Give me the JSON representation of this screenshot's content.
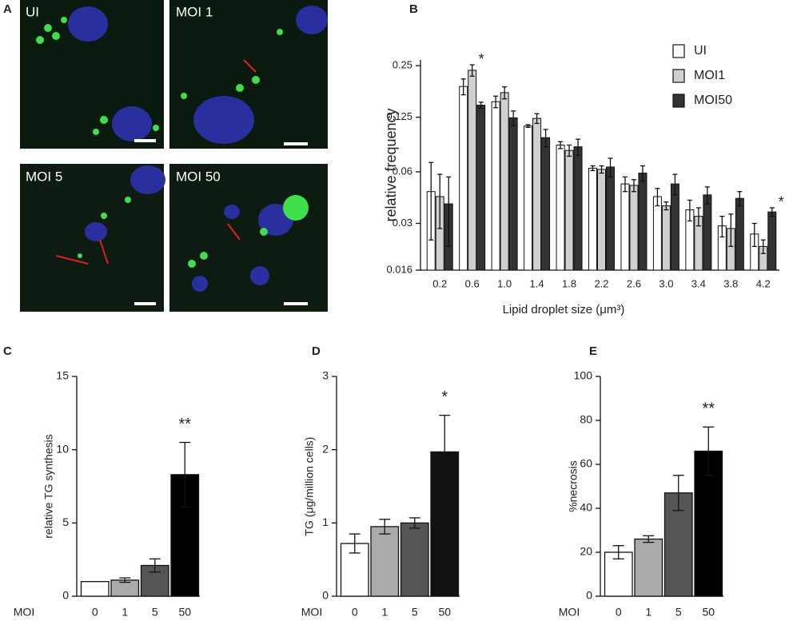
{
  "panel_a": {
    "panel": "A",
    "images": [
      "UI",
      "MOI 1",
      "MOI 5",
      "MOI 50"
    ]
  },
  "chart_data": [
    {
      "type": "bar",
      "panel": "B",
      "ylabel": "relative frequency",
      "xlabel": "Lipid droplet size (μm³)",
      "log_scale": true,
      "legend": "upper right",
      "categories": [
        "0.2",
        "0.6",
        "1.0",
        "1.4",
        "1.8",
        "2.2",
        "2.6",
        "3.0",
        "3.4",
        "3.8",
        "4.2"
      ],
      "series": [
        {
          "name": "UI",
          "color": "#ffffff",
          "values": [
            0.046,
            0.189,
            0.154,
            0.111,
            0.086,
            0.063,
            0.051,
            0.043,
            0.036,
            0.029,
            0.026
          ],
          "errors": [
            0.022,
            0.02,
            0.012,
            0.002,
            0.004,
            0.002,
            0.005,
            0.005,
            0.005,
            0.004,
            0.004
          ]
        },
        {
          "name": "MOI1",
          "color": "#d0d0d0",
          "values": [
            0.043,
            0.235,
            0.174,
            0.123,
            0.08,
            0.062,
            0.05,
            0.038,
            0.033,
            0.028,
            0.022
          ],
          "errors": [
            0.015,
            0.018,
            0.014,
            0.008,
            0.006,
            0.003,
            0.004,
            0.002,
            0.004,
            0.006,
            0.002
          ]
        },
        {
          "name": "MOI50",
          "color": "#333333",
          "values": [
            0.039,
            0.147,
            0.124,
            0.095,
            0.084,
            0.064,
            0.059,
            0.051,
            0.044,
            0.042,
            0.035
          ],
          "errors": [
            0.017,
            0.006,
            0.012,
            0.011,
            0.009,
            0.008,
            0.006,
            0.007,
            0.005,
            0.004,
            0.002
          ]
        }
      ],
      "ylim": [
        0.016,
        0.27
      ],
      "yticks": [
        0.016,
        0.03,
        0.06,
        0.125,
        0.25
      ],
      "annotations": [
        {
          "text": "*",
          "category": 1,
          "series": 1
        },
        {
          "text": "*",
          "category": 10,
          "series": 2
        }
      ]
    },
    {
      "type": "bar",
      "panel": "C",
      "ylabel": "relative TG synthesis",
      "xlabel": "MOI",
      "categories": [
        "0",
        "1",
        "5",
        "50"
      ],
      "values": [
        1,
        1.1,
        2.1,
        8.3
      ],
      "errors": [
        0,
        0.15,
        0.45,
        2.2
      ],
      "colors": [
        "#ffffff",
        "#aaaaaa",
        "#555555",
        "#000000"
      ],
      "ylim": [
        0,
        15
      ],
      "yticks": [
        0,
        5,
        10,
        15
      ],
      "annotations": [
        {
          "text": "**",
          "category": 3
        }
      ]
    },
    {
      "type": "bar",
      "panel": "D",
      "ylabel": "TG (μg/million cells)",
      "xlabel": "MOI",
      "categories": [
        "0",
        "1",
        "5",
        "50"
      ],
      "values": [
        0.72,
        0.95,
        1.0,
        1.97
      ],
      "errors": [
        0.13,
        0.1,
        0.07,
        0.5
      ],
      "colors": [
        "#ffffff",
        "#aaaaaa",
        "#555555",
        "#111111"
      ],
      "ylim": [
        0,
        3
      ],
      "yticks": [
        0,
        1,
        2,
        3
      ],
      "annotations": [
        {
          "text": "*",
          "category": 3
        }
      ]
    },
    {
      "type": "bar",
      "panel": "E",
      "ylabel": "%necrosis",
      "xlabel": "MOI",
      "categories": [
        "0",
        "1",
        "5",
        "50"
      ],
      "values": [
        20,
        26,
        47,
        66
      ],
      "errors": [
        3,
        1.5,
        8,
        11
      ],
      "colors": [
        "#ffffff",
        "#aaaaaa",
        "#555555",
        "#000000"
      ],
      "ylim": [
        0,
        100
      ],
      "yticks": [
        0,
        20,
        40,
        60,
        80,
        100
      ],
      "annotations": [
        {
          "text": "**",
          "category": 3
        }
      ]
    }
  ]
}
